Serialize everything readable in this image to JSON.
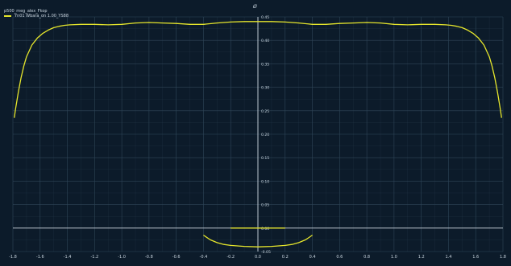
{
  "chart_data": {
    "type": "line",
    "title": "p500_meg_alex_Fkop",
    "top_label": "Ø",
    "xlabel": "",
    "ylabel": "",
    "xlim": [
      -1.8,
      1.8
    ],
    "ylim": [
      -0.05,
      0.45
    ],
    "x_ticks": [
      "-1.8",
      "-1.6",
      "-1.4",
      "-1.2",
      "-1.0",
      "-0.8",
      "-0.6",
      "-0.4",
      "-0.2",
      "0.0",
      "0.2",
      "0.4",
      "0.6",
      "0.8",
      "1.0",
      "1.2",
      "1.4",
      "1.6",
      "1.8"
    ],
    "x_tick_values": [
      -1.8,
      -1.6,
      -1.4,
      -1.2,
      -1.0,
      -0.8,
      -0.6,
      -0.4,
      -0.2,
      0.0,
      0.2,
      0.4,
      0.6,
      0.8,
      1.0,
      1.2,
      1.4,
      1.6,
      1.8
    ],
    "y_ticks": [
      "0.45",
      "0.40",
      "0.35",
      "0.30",
      "0.25",
      "0.20",
      "0.15",
      "0.10",
      "0.05",
      "0.00",
      "-0.05"
    ],
    "y_tick_values": [
      0.45,
      0.4,
      0.35,
      0.3,
      0.25,
      0.2,
      0.15,
      0.1,
      0.05,
      0.0,
      -0.05
    ],
    "grid": true,
    "legend": {
      "position": "top-left",
      "entries": [
        "Yn01 Wbara_on 1.00_YS88"
      ]
    },
    "colors": {
      "background": "#0c1b2a",
      "grid": "#2f4658",
      "axis": "#cfd8e0",
      "series": "#e6e62c",
      "text": "#c8d4de"
    },
    "series": [
      {
        "name": "Yn01 Wbara_on 1.00_YS88",
        "x": [
          -1.79,
          -1.78,
          -1.76,
          -1.74,
          -1.72,
          -1.7,
          -1.66,
          -1.62,
          -1.58,
          -1.54,
          -1.5,
          -1.46,
          -1.42,
          -1.38,
          -1.3,
          -1.2,
          -1.1,
          -1.0,
          -0.9,
          -0.8,
          -0.7,
          -0.6,
          -0.5,
          -0.4,
          -0.3,
          -0.2,
          -0.1,
          0.0,
          0.1,
          0.2,
          0.3,
          0.4,
          0.5,
          0.6,
          0.7,
          0.8,
          0.9,
          1.0,
          1.1,
          1.2,
          1.3,
          1.38,
          1.42,
          1.46,
          1.5,
          1.54,
          1.58,
          1.62,
          1.66,
          1.7,
          1.72,
          1.74,
          1.76,
          1.78,
          1.79
        ],
        "y": [
          0.235,
          0.255,
          0.29,
          0.32,
          0.345,
          0.365,
          0.39,
          0.405,
          0.415,
          0.422,
          0.427,
          0.43,
          0.432,
          0.433,
          0.434,
          0.434,
          0.433,
          0.434,
          0.437,
          0.438,
          0.437,
          0.436,
          0.434,
          0.434,
          0.437,
          0.439,
          0.44,
          0.44,
          0.44,
          0.439,
          0.437,
          0.434,
          0.434,
          0.436,
          0.437,
          0.438,
          0.437,
          0.434,
          0.433,
          0.434,
          0.434,
          0.433,
          0.432,
          0.43,
          0.427,
          0.422,
          0.415,
          0.405,
          0.39,
          0.365,
          0.345,
          0.32,
          0.29,
          0.255,
          0.235
        ]
      },
      {
        "name": "",
        "x": [
          -0.2,
          -0.1,
          0.0,
          0.1,
          0.2
        ],
        "y": [
          0.0,
          0.0,
          0.0,
          0.0,
          0.0
        ]
      },
      {
        "name": "",
        "x": [
          -0.4,
          -0.35,
          -0.3,
          -0.25,
          -0.2,
          -0.1,
          0.0,
          0.1,
          0.2,
          0.25,
          0.3,
          0.35,
          0.4
        ],
        "y": [
          -0.015,
          -0.025,
          -0.031,
          -0.035,
          -0.037,
          -0.039,
          -0.04,
          -0.039,
          -0.037,
          -0.035,
          -0.031,
          -0.025,
          -0.015
        ]
      }
    ]
  }
}
